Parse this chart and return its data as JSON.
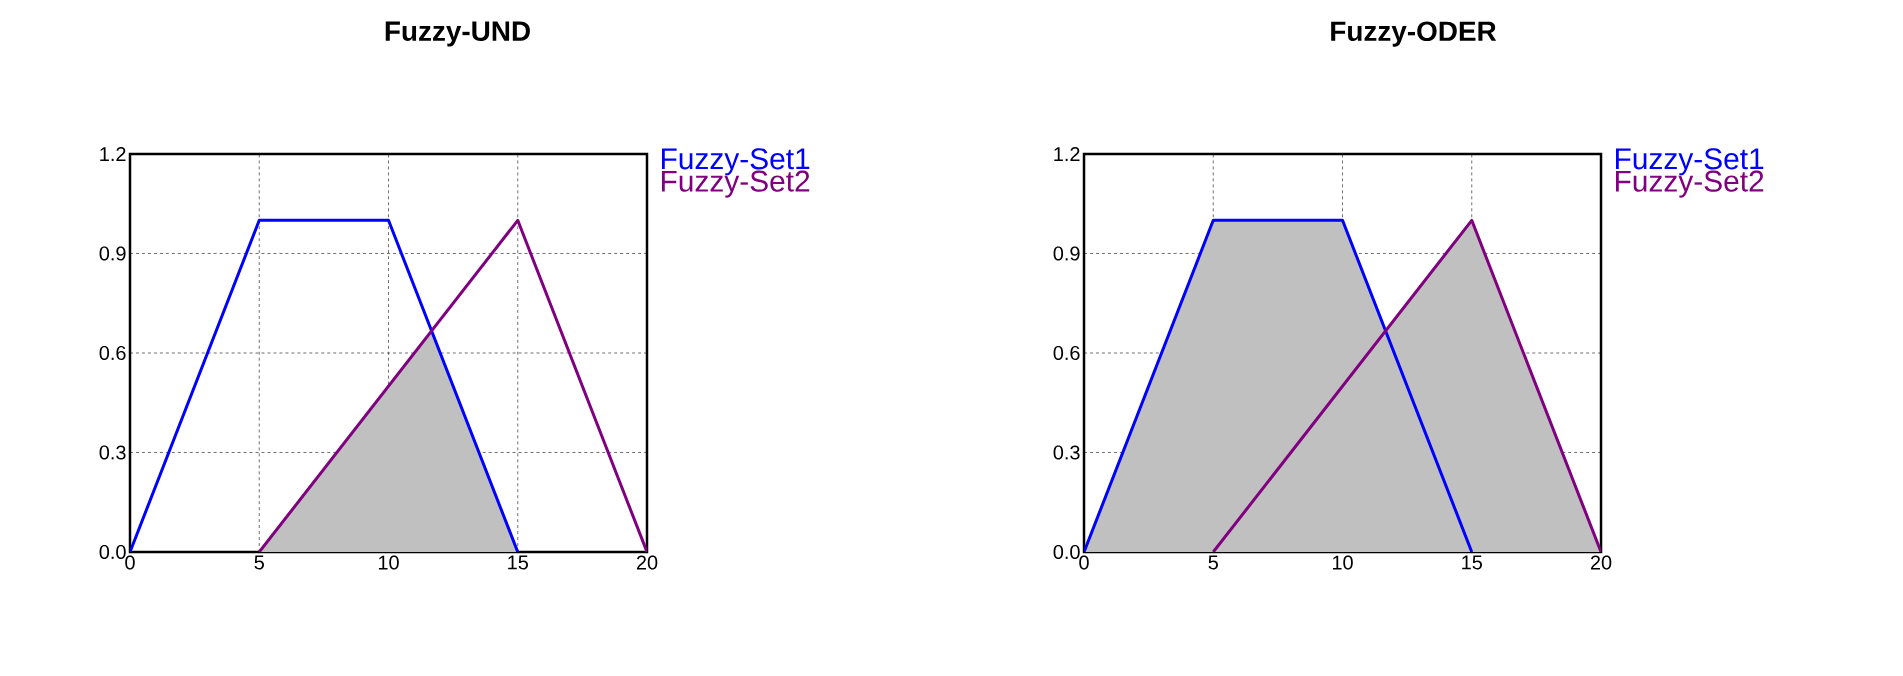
{
  "chart_data": [
    {
      "type": "line",
      "title": "Fuzzy-UND",
      "xlim": [
        0,
        20
      ],
      "ylim": [
        0,
        1.2
      ],
      "xticks": [
        0,
        5,
        10,
        15,
        20
      ],
      "yticks": [
        {
          "value": 0,
          "label": "0.0"
        },
        0.3,
        0.6,
        0.9,
        1.2
      ],
      "grid": true,
      "legend": "right",
      "series": [
        {
          "type": "area",
          "color": "#c0c0c0",
          "x": [
            5,
            11.67,
            15
          ],
          "values": [
            0,
            0.67,
            0
          ]
        },
        {
          "name": "Fuzzy-Set1",
          "color": "#0000ff",
          "x": [
            0,
            5,
            10,
            15
          ],
          "values": [
            0,
            1,
            1,
            0
          ]
        },
        {
          "name": "Fuzzy-Set2",
          "color": "#800080",
          "x": [
            5,
            15,
            20
          ],
          "values": [
            0,
            1,
            0
          ]
        }
      ]
    },
    {
      "type": "line",
      "title": "Fuzzy-ODER",
      "xlim": [
        0,
        20
      ],
      "ylim": [
        0,
        1.2
      ],
      "xticks": [
        0,
        5,
        10,
        15,
        20
      ],
      "yticks": [
        {
          "value": 0,
          "label": "0.0"
        },
        0.3,
        0.6,
        0.9,
        1.2
      ],
      "grid": true,
      "legend": "right",
      "series": [
        {
          "type": "area",
          "color": "#c0c0c0",
          "x": [
            0,
            5,
            10,
            11.67,
            15,
            20
          ],
          "values": [
            0,
            1,
            1,
            0.67,
            1,
            0
          ]
        },
        {
          "name": "Fuzzy-Set1",
          "color": "#0000ff",
          "x": [
            0,
            5,
            10,
            15
          ],
          "values": [
            0,
            1,
            1,
            0
          ]
        },
        {
          "name": "Fuzzy-Set2",
          "color": "#800080",
          "x": [
            5,
            15,
            20
          ],
          "values": [
            0,
            1,
            0
          ]
        }
      ]
    }
  ]
}
